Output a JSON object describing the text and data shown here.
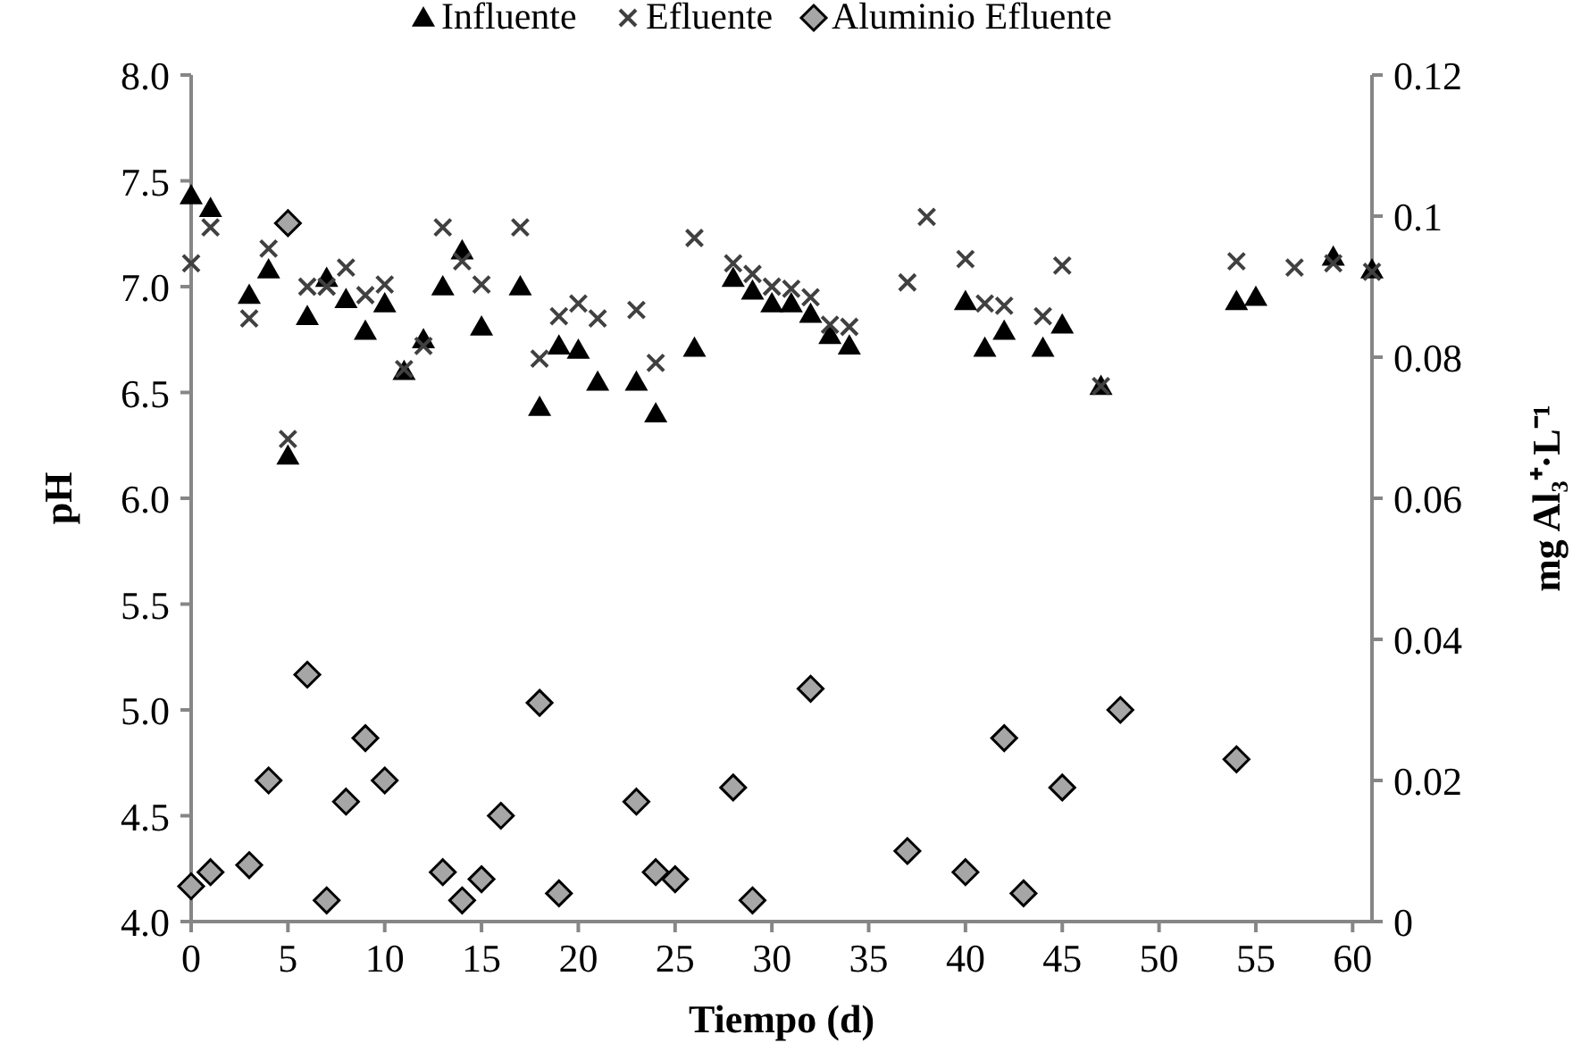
{
  "chart_data": {
    "type": "scatter",
    "xlabel": "Tiempo (d)",
    "ylabel": "pH",
    "y2label": "mg Al₃⁺·L⁻¹",
    "legend": "top",
    "grid": false,
    "xlim": [
      0,
      61
    ],
    "xticks": [
      0,
      5,
      10,
      15,
      20,
      25,
      30,
      35,
      40,
      45,
      50,
      55,
      60
    ],
    "ylim": [
      4,
      8
    ],
    "yticks": [
      {
        "value": 4,
        "label": "4.0"
      },
      {
        "value": 4.5,
        "label": "4.5"
      },
      {
        "value": 5,
        "label": "5.0"
      },
      {
        "value": 5.5,
        "label": "5.5"
      },
      {
        "value": 6,
        "label": "6.0"
      },
      {
        "value": 6.5,
        "label": "6.5"
      },
      {
        "value": 7,
        "label": "7.0"
      },
      {
        "value": 7.5,
        "label": "7.5"
      },
      {
        "value": 8,
        "label": "8.0"
      }
    ],
    "y2lim": [
      0,
      0.12
    ],
    "y2ticks": [
      0,
      0.02,
      0.04,
      0.06,
      0.08,
      0.1,
      0.12
    ],
    "series": [
      {
        "name": "Influente",
        "color": "#000000",
        "marker": "triangle",
        "x": [
          0,
          1,
          3,
          4,
          5,
          6,
          7,
          8,
          9,
          10,
          11,
          12,
          13,
          14,
          15,
          17,
          18,
          19,
          20,
          21,
          23,
          24,
          26,
          28,
          29,
          30,
          31,
          32,
          33,
          34,
          40,
          41,
          42,
          44,
          45,
          47,
          54,
          55,
          59,
          61
        ],
        "values": [
          7.43,
          7.37,
          6.96,
          7.08,
          6.2,
          6.86,
          7.04,
          6.94,
          6.79,
          6.92,
          6.6,
          6.75,
          7.0,
          7.17,
          6.81,
          7.0,
          6.43,
          6.72,
          6.7,
          6.55,
          6.55,
          6.4,
          6.71,
          7.04,
          6.98,
          6.92,
          6.92,
          6.87,
          6.77,
          6.72,
          6.93,
          6.71,
          6.79,
          6.71,
          6.82,
          6.53,
          6.93,
          6.95,
          7.14,
          7.08
        ]
      },
      {
        "name": "Efluente",
        "color": "#404040",
        "marker": "cross",
        "x": [
          0,
          1,
          3,
          4,
          5,
          6,
          7,
          8,
          9,
          10,
          11,
          12,
          13,
          14,
          15,
          17,
          18,
          19,
          20,
          21,
          23,
          24,
          26,
          28,
          29,
          30,
          31,
          32,
          33,
          34,
          37,
          38,
          40,
          41,
          42,
          44,
          45,
          47,
          54,
          57,
          59,
          61
        ],
        "values": [
          7.11,
          7.28,
          6.85,
          7.18,
          6.28,
          7.0,
          7.0,
          7.09,
          6.96,
          7.01,
          6.61,
          6.72,
          7.28,
          7.12,
          7.01,
          7.28,
          6.66,
          6.86,
          6.92,
          6.85,
          6.89,
          6.64,
          7.23,
          7.11,
          7.06,
          7.0,
          6.99,
          6.95,
          6.82,
          6.81,
          7.02,
          7.33,
          7.13,
          6.92,
          6.91,
          6.86,
          7.1,
          6.53,
          7.12,
          7.09,
          7.11,
          7.07
        ]
      },
      {
        "name": "Aluminio Efluente",
        "color": "#a6a6a6",
        "marker": "diamond",
        "axis": "y2",
        "x": [
          0,
          1,
          3,
          4,
          5,
          6,
          7,
          8,
          9,
          10,
          13,
          14,
          15,
          16,
          18,
          19,
          23,
          24,
          25,
          28,
          29,
          32,
          37,
          40,
          42,
          43,
          45,
          48,
          54
        ],
        "values": [
          0.005,
          0.007,
          0.008,
          0.02,
          0.099,
          0.035,
          0.003,
          0.017,
          0.026,
          0.02,
          0.007,
          0.003,
          0.006,
          0.015,
          0.031,
          0.004,
          0.017,
          0.007,
          0.006,
          0.019,
          0.003,
          0.033,
          0.01,
          0.007,
          0.026,
          0.004,
          0.019,
          0.03,
          0.023
        ]
      }
    ]
  }
}
